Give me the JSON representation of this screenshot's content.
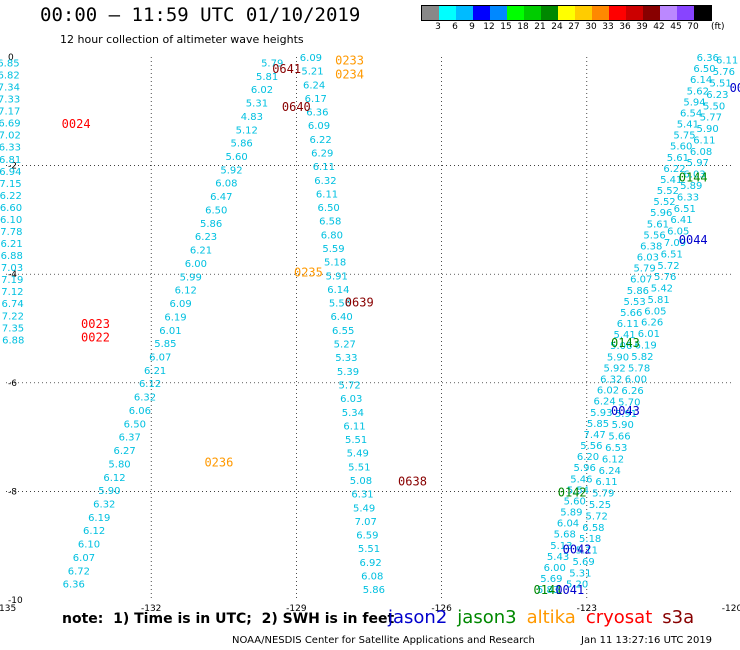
{
  "header": {
    "title": "00:00 — 11:59 UTC 01/10/2019",
    "subtitle": "12 hour collection of altimeter wave heights"
  },
  "colorbar": {
    "colors": [
      "#888888",
      "#00ffff",
      "#00bbff",
      "#0000ff",
      "#0088ff",
      "#00ff00",
      "#00cc00",
      "#008800",
      "#ffff00",
      "#ffcc00",
      "#ff8800",
      "#ff0000",
      "#cc0000",
      "#880000",
      "#bb88ff",
      "#8844ff",
      "#000000"
    ],
    "labels": [
      "3",
      "6",
      "9",
      "12",
      "15",
      "18",
      "21",
      "24",
      "27",
      "30",
      "33",
      "36",
      "39",
      "42",
      "45",
      "70"
    ],
    "unit": "(ft)"
  },
  "chart_data": {
    "type": "scatter",
    "title": "00:00 — 11:59 UTC 01/10/2019",
    "subtitle": "12 hour collection of altimeter wave heights",
    "xlabel": "",
    "ylabel": "",
    "xlim": [
      -135,
      -120
    ],
    "ylim": [
      -10,
      0
    ],
    "x_ticks": [
      "-135",
      "-132",
      "-129",
      "-126",
      "-123",
      "-120"
    ],
    "y_ticks": [
      "0",
      "-2",
      "-4",
      "-6",
      "-8",
      "-10"
    ],
    "grid": true,
    "point_color": "#00c0e0",
    "tracks": [
      {
        "lon_start": -134.95,
        "lat_start": -0.1,
        "lon_end": -134.85,
        "lat_end": -5.2,
        "values": [
          "6.85",
          "6.82",
          "7.34",
          "7.33",
          "7.17",
          "6.69",
          "7.02",
          "6.33",
          "6.81",
          "6.94",
          "7.15",
          "6.22",
          "6.60",
          "6.10",
          "7.78",
          "6.21",
          "6.88",
          "7.03",
          "7.19",
          "7.12",
          "6.74",
          "7.22",
          "7.35",
          "6.88"
        ]
      },
      {
        "lon_start": -129.5,
        "lat_start": -0.1,
        "lon_end": -133.6,
        "lat_end": -9.7,
        "values": [
          "5.79",
          "5.81",
          "6.02",
          "5.31",
          "4.83",
          "5.12",
          "5.86",
          "5.60",
          "5.92",
          "6.08",
          "6.47",
          "6.50",
          "5.86",
          "6.23",
          "6.21",
          "6.00",
          "5.99",
          "6.12",
          "6.09",
          "6.19",
          "6.01",
          "5.85",
          "6.07",
          "6.21",
          "6.12",
          "6.32",
          "6.06",
          "6.50",
          "6.37",
          "6.27",
          "5.80",
          "6.12",
          "5.90",
          "6.32",
          "6.19",
          "6.12",
          "6.10",
          "6.07",
          "6.72",
          "6.36"
        ]
      },
      {
        "lon_start": -128.7,
        "lat_start": 0.0,
        "lon_end": -127.4,
        "lat_end": -9.8,
        "values": [
          "6.09",
          "5.21",
          "6.24",
          "6.17",
          "6.36",
          "6.09",
          "6.22",
          "6.29",
          "6.11",
          "6.32",
          "6.11",
          "6.50",
          "6.58",
          "6.80",
          "5.59",
          "5.18",
          "5.91",
          "6.14",
          "5.56",
          "6.40",
          "6.55",
          "5.27",
          "5.33",
          "5.39",
          "5.72",
          "6.03",
          "5.34",
          "6.11",
          "5.51",
          "5.49",
          "5.51",
          "5.08",
          "6.31",
          "5.49",
          "7.07",
          "6.59",
          "5.51",
          "6.92",
          "6.08",
          "5.86"
        ]
      },
      {
        "lon_start": -120.5,
        "lat_start": 0.0,
        "lon_end": -123.8,
        "lat_end": -9.8,
        "values": [
          "6.36",
          "6.50",
          "6.14",
          "5.62",
          "5.94",
          "6.54",
          "5.41",
          "5.75",
          "5.60",
          "5.61",
          "6.22",
          "5.41",
          "5.52",
          "5.52",
          "5.96",
          "5.61",
          "5.56",
          "6.38",
          "6.03",
          "5.79",
          "6.07",
          "5.86",
          "5.53",
          "5.66",
          "6.11",
          "5.41",
          "5.06",
          "5.90",
          "5.92",
          "6.32",
          "6.02",
          "6.24",
          "5.93",
          "5.85",
          "7.47",
          "5.56",
          "6.20",
          "5.96",
          "5.46",
          "5.54",
          "5.60",
          "5.89",
          "6.04",
          "5.68",
          "5.13",
          "5.43",
          "6.00",
          "5.69",
          "5.83"
        ]
      },
      {
        "lon_start": -120.1,
        "lat_start": -0.05,
        "lon_end": -123.2,
        "lat_end": -9.7,
        "values": [
          "6.11",
          "5.76",
          "5.51",
          "6.23",
          "5.50",
          "5.77",
          "5.90",
          "6.11",
          "6.08",
          "5.97",
          "6.03",
          "5.89",
          "6.33",
          "6.51",
          "6.41",
          "6.05",
          "7.09",
          "6.51",
          "5.72",
          "5.76",
          "5.42",
          "5.81",
          "6.05",
          "6.26",
          "6.01",
          "6.19",
          "5.82",
          "5.78",
          "6.00",
          "6.26",
          "5.70",
          "5.91",
          "5.90",
          "5.66",
          "6.53",
          "6.12",
          "6.24",
          "6.11",
          "5.79",
          "5.25",
          "5.72",
          "6.58",
          "5.18",
          "5.11",
          "5.69",
          "5.31",
          "5.20"
        ]
      }
    ],
    "pass_labels": [
      {
        "text": "0024",
        "color": "#ff0000",
        "lon": -133.85,
        "lat": -1.22
      },
      {
        "text": "0023",
        "color": "#ff0000",
        "lon": -133.45,
        "lat": -4.9
      },
      {
        "text": "0022",
        "color": "#ff0000",
        "lon": -133.45,
        "lat": -5.15
      },
      {
        "text": "0641",
        "color": "#880000",
        "lon": -129.5,
        "lat": -0.2
      },
      {
        "text": "0233",
        "color": "#ff9900",
        "lon": -128.2,
        "lat": -0.05
      },
      {
        "text": "0234",
        "color": "#ff9900",
        "lon": -128.2,
        "lat": -0.3
      },
      {
        "text": "0640",
        "color": "#880000",
        "lon": -129.3,
        "lat": -0.9
      },
      {
        "text": "0235",
        "color": "#ff9900",
        "lon": -129.05,
        "lat": -3.95
      },
      {
        "text": "0639",
        "color": "#880000",
        "lon": -128.0,
        "lat": -4.5
      },
      {
        "text": "0236",
        "color": "#ff9900",
        "lon": -130.9,
        "lat": -7.45
      },
      {
        "text": "0638",
        "color": "#880000",
        "lon": -126.9,
        "lat": -7.8
      },
      {
        "text": "0144",
        "color": "#008800",
        "lon": -121.1,
        "lat": -2.2
      },
      {
        "text": "0044",
        "color": "#0000cc",
        "lon": -121.1,
        "lat": -3.35
      },
      {
        "text": "0143",
        "color": "#008800",
        "lon": -122.5,
        "lat": -5.25
      },
      {
        "text": "0043",
        "color": "#0000cc",
        "lon": -122.5,
        "lat": -6.5
      },
      {
        "text": "0142",
        "color": "#008800",
        "lon": -123.6,
        "lat": -8.0
      },
      {
        "text": "0042",
        "color": "#0000cc",
        "lon": -123.5,
        "lat": -9.05
      },
      {
        "text": "0141",
        "color": "#008800",
        "lon": -124.1,
        "lat": -9.8
      },
      {
        "text": "0041",
        "color": "#0000cc",
        "lon": -123.65,
        "lat": -9.8
      },
      {
        "text": "00",
        "color": "#0000cc",
        "lon": -120.05,
        "lat": -0.55
      }
    ]
  },
  "note": "note:  1) Time is in UTC;  2) SWH is in feet",
  "legend": [
    {
      "name": "jason2",
      "color": "#0000cc"
    },
    {
      "name": "jason3",
      "color": "#008800"
    },
    {
      "name": "altika",
      "color": "#ff9900"
    },
    {
      "name": "cryosat",
      "color": "#ff0000"
    },
    {
      "name": "s3a",
      "color": "#880000"
    }
  ],
  "footer": {
    "credit": "NOAA/NESDIS Center for Satellite Applications and Research",
    "timestamp": "Jan 11 13:27:16 UTC 2019"
  }
}
